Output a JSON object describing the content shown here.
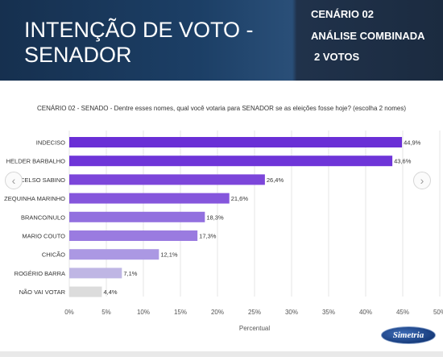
{
  "header": {
    "title": "INTENÇÃO DE VOTO - SENADOR",
    "right_lines": [
      "CENÁRIO 02",
      "ANÁLISE COMBINADA",
      "2 VOTOS"
    ]
  },
  "nav": {
    "prev_icon": "chevron-left-icon",
    "next_icon": "chevron-right-icon"
  },
  "logo": {
    "text": "Simetria"
  },
  "chart_data": {
    "type": "bar",
    "orientation": "horizontal",
    "title": "CENÁRIO 02 - SENADO - Dentre esses nomes, qual você votaria para SENADOR se as eleições fosse hoje? (escolha 2 nomes)",
    "xlabel": "Percentual",
    "ylabel": "",
    "categories": [
      "INDECISO",
      "HELDER BARBALHO",
      "CELSO SABINO",
      "ZEQUINHA MARINHO",
      "BRANCO/NULO",
      "MARIO COUTO",
      "CHICÃO",
      "ROGÉRIO BARRA",
      "NÃO VAI VOTAR"
    ],
    "values": [
      44.9,
      43.6,
      26.4,
      21.6,
      18.3,
      17.3,
      12.1,
      7.1,
      4.4
    ],
    "value_labels": [
      "44,9%",
      "43,6%",
      "26,4%",
      "21,6%",
      "18,3%",
      "17,3%",
      "12,1%",
      "7,1%",
      "4,4%"
    ],
    "colors": [
      "#6a2fd6",
      "#6e35d8",
      "#7c46da",
      "#8556dc",
      "#9270df",
      "#9a7be0",
      "#ab98e3",
      "#bfb6e4",
      "#dcdcdc"
    ],
    "xlim": [
      0,
      50
    ],
    "xticks": [
      0,
      5,
      10,
      15,
      20,
      25,
      30,
      35,
      40,
      45,
      50
    ],
    "xtick_labels": [
      "0%",
      "5%",
      "10%",
      "15%",
      "20%",
      "25%",
      "30%",
      "35%",
      "40%",
      "45%",
      "50%"
    ],
    "grid": true
  }
}
